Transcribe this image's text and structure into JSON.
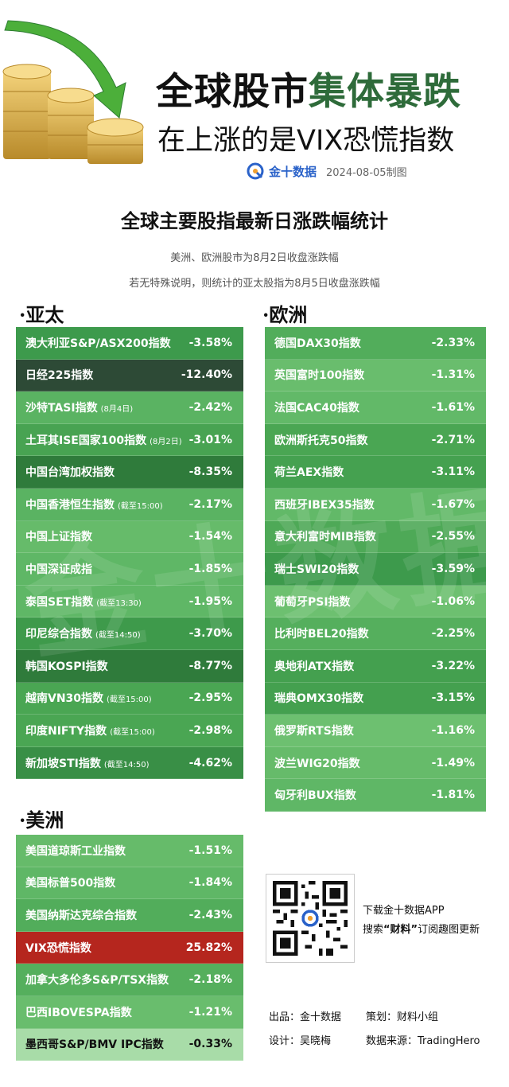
{
  "header": {
    "title_part1": "全球股市",
    "title_part2": "集体暴跌",
    "title_line2": "在上涨的是VIX恐慌指数",
    "brand": "金十数据",
    "date_note": "2024-08-05制图"
  },
  "subtitle": "全球主要股指最新日涨跌幅统计",
  "notes": [
    "美洲、欧洲股市为8月2日收盘涨跌幅",
    "若无特殊说明，则统计的亚太股指为8月5日收盘涨跌幅"
  ],
  "watermark": "金十数据",
  "sections": {
    "asia": "·亚太",
    "europe": "·欧洲",
    "americas": "·美洲"
  },
  "asia": [
    {
      "name": "澳大利亚S&P/ASX200指数",
      "tag": "",
      "value": "-3.58%",
      "color": "#3d9a4c"
    },
    {
      "name": "日经225指数",
      "tag": "",
      "value": "-12.40%",
      "color": "#2d4a36"
    },
    {
      "name": "沙特TASI指数",
      "tag": "(8月4日)",
      "value": "-2.42%",
      "color": "#5ab362"
    },
    {
      "name": "土耳其ISE国家100指数",
      "tag": "(8月2日)",
      "value": "-3.01%",
      "color": "#48a352"
    },
    {
      "name": "中国台湾加权指数",
      "tag": "",
      "value": "-8.35%",
      "color": "#2f7b3b"
    },
    {
      "name": "中国香港恒生指数",
      "tag": "(截至15:00)",
      "value": "-2.17%",
      "color": "#5ab362"
    },
    {
      "name": "中国上证指数",
      "tag": "",
      "value": "-1.54%",
      "color": "#66bb6a"
    },
    {
      "name": "中国深证成指",
      "tag": "",
      "value": "-1.85%",
      "color": "#5fb766"
    },
    {
      "name": "泰国SET指数",
      "tag": "(截至13:30)",
      "value": "-1.95%",
      "color": "#5fb766"
    },
    {
      "name": "印尼综合指数",
      "tag": "(截至14:50)",
      "value": "-3.70%",
      "color": "#3e9a4b"
    },
    {
      "name": "韩国KOSPI指数",
      "tag": "",
      "value": "-8.77%",
      "color": "#2f7b3b"
    },
    {
      "name": "越南VN30指数",
      "tag": "(截至15:00)",
      "value": "-2.95%",
      "color": "#4aa653"
    },
    {
      "name": "印度NIFTY指数",
      "tag": "(截至15:00)",
      "value": "-2.98%",
      "color": "#4aa653"
    },
    {
      "name": "新加坡STI指数",
      "tag": "(截至14:50)",
      "value": "-4.62%",
      "color": "#398f46"
    }
  ],
  "europe": [
    {
      "name": "德国DAX30指数",
      "tag": "",
      "value": "-2.33%",
      "color": "#52ad5b"
    },
    {
      "name": "英国富时100指数",
      "tag": "",
      "value": "-1.31%",
      "color": "#69bd6d"
    },
    {
      "name": "法国CAC40指数",
      "tag": "",
      "value": "-1.61%",
      "color": "#62b968"
    },
    {
      "name": "欧洲斯托克50指数",
      "tag": "",
      "value": "-2.71%",
      "color": "#4aa653"
    },
    {
      "name": "荷兰AEX指数",
      "tag": "",
      "value": "-3.11%",
      "color": "#45a150"
    },
    {
      "name": "西班牙IBEX35指数",
      "tag": "",
      "value": "-1.67%",
      "color": "#62b968"
    },
    {
      "name": "意大利富时MIB指数",
      "tag": "",
      "value": "-2.55%",
      "color": "#4ea957"
    },
    {
      "name": "瑞士SWI20指数",
      "tag": "",
      "value": "-3.59%",
      "color": "#3d9a4c"
    },
    {
      "name": "葡萄牙PSI指数",
      "tag": "",
      "value": "-1.06%",
      "color": "#6dc070"
    },
    {
      "name": "比利时BEL20指数",
      "tag": "",
      "value": "-2.25%",
      "color": "#55af5d"
    },
    {
      "name": "奥地利ATX指数",
      "tag": "",
      "value": "-3.22%",
      "color": "#44a04f"
    },
    {
      "name": "瑞典OMX30指数",
      "tag": "",
      "value": "-3.15%",
      "color": "#44a04f"
    },
    {
      "name": "俄罗斯RTS指数",
      "tag": "",
      "value": "-1.16%",
      "color": "#6dc070"
    },
    {
      "name": "波兰WIG20指数",
      "tag": "",
      "value": "-1.49%",
      "color": "#66bb6a"
    },
    {
      "name": "匈牙利BUX指数",
      "tag": "",
      "value": "-1.81%",
      "color": "#5fb766"
    }
  ],
  "americas": [
    {
      "name": "美国道琼斯工业指数",
      "tag": "",
      "value": "-1.51%",
      "color": "#66bb6a",
      "text": "white"
    },
    {
      "name": "美国标普500指数",
      "tag": "",
      "value": "-1.84%",
      "color": "#5fb766",
      "text": "white"
    },
    {
      "name": "美国纳斯达克综合指数",
      "tag": "",
      "value": "-2.43%",
      "color": "#52ad5b",
      "text": "white"
    },
    {
      "name": "VIX恐慌指数",
      "tag": "",
      "value": "25.82%",
      "color": "#b5261e",
      "text": "white"
    },
    {
      "name": "加拿大多伦多S&P/TSX指数",
      "tag": "",
      "value": "-2.18%",
      "color": "#55af5d",
      "text": "white"
    },
    {
      "name": "巴西IBOVESPA指数",
      "tag": "",
      "value": "-1.21%",
      "color": "#69bd6d",
      "text": "white"
    },
    {
      "name": "墨西哥S&P/BMV IPC指数",
      "tag": "",
      "value": "-0.33%",
      "color": "#a8dca8",
      "text": "dark"
    }
  ],
  "download": {
    "line1": "下载金十数据APP",
    "line2_pre": "搜索",
    "line2_key": "“财料”",
    "line2_post": "订阅趣图更新"
  },
  "credits": {
    "producer": "出品：金十数据",
    "planner": "策划：财料小组",
    "designer": "设计：吴晓梅",
    "source": "数据来源：TradingHero"
  }
}
